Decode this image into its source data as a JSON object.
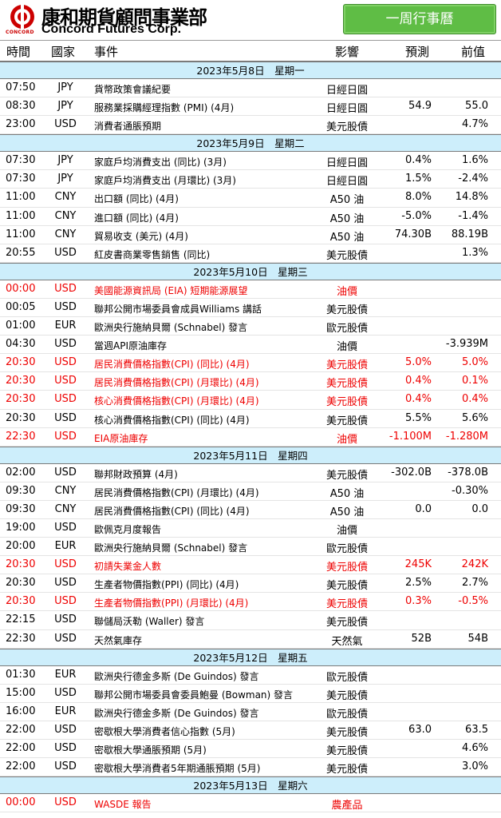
{
  "header": {
    "logo_cn": "康和期貨顧問事業部",
    "logo_en": "Concord Futures Corp.",
    "logo_small": "CONCORD",
    "badge": "一周行事曆",
    "brand_color": "#cc0000",
    "badge_color": "#5fbd45"
  },
  "columns": {
    "time": "時間",
    "country": "國家",
    "event": "事件",
    "impact": "影響",
    "forecast": "預測",
    "previous": "前值"
  },
  "highlight_color": "#ee0000",
  "days": [
    {
      "date": "2023年5月8日　星期一",
      "events": [
        {
          "time": "07:50",
          "country": "JPY",
          "event": "貨幣政策會議紀要",
          "impact": "日經日圓",
          "forecast": "",
          "previous": "",
          "red": false
        },
        {
          "time": "08:30",
          "country": "JPY",
          "event": "服務業採購經理指數 (PMI) (4月)",
          "impact": "日經日圓",
          "forecast": "54.9",
          "previous": "55.0",
          "red": false
        },
        {
          "time": "23:00",
          "country": "USD",
          "event": "消費者通脹預期",
          "impact": "美元股債",
          "forecast": "",
          "previous": "4.7%",
          "red": false
        }
      ]
    },
    {
      "date": "2023年5月9日　星期二",
      "events": [
        {
          "time": "07:30",
          "country": "JPY",
          "event": "家庭戶均消費支出 (同比) (3月)",
          "impact": "日經日圓",
          "forecast": "0.4%",
          "previous": "1.6%",
          "red": false
        },
        {
          "time": "07:30",
          "country": "JPY",
          "event": "家庭戶均消費支出 (月環比) (3月)",
          "impact": "日經日圓",
          "forecast": "1.5%",
          "previous": "-2.4%",
          "red": false
        },
        {
          "time": "11:00",
          "country": "CNY",
          "event": "出口額 (同比) (4月)",
          "impact": "A50 油",
          "forecast": "8.0%",
          "previous": "14.8%",
          "red": false
        },
        {
          "time": "11:00",
          "country": "CNY",
          "event": "進口額 (同比) (4月)",
          "impact": "A50 油",
          "forecast": "-5.0%",
          "previous": "-1.4%",
          "red": false
        },
        {
          "time": "11:00",
          "country": "CNY",
          "event": "貿易收支 (美元) (4月)",
          "impact": "A50 油",
          "forecast": "74.30B",
          "previous": "88.19B",
          "red": false
        },
        {
          "time": "20:55",
          "country": "USD",
          "event": "紅皮書商業零售銷售 (同比)",
          "impact": "美元股債",
          "forecast": "",
          "previous": "1.3%",
          "red": false
        }
      ]
    },
    {
      "date": "2023年5月10日　星期三",
      "events": [
        {
          "time": "00:00",
          "country": "USD",
          "event": "美國能源資訊局 (EIA) 短期能源展望",
          "impact": "油價",
          "forecast": "",
          "previous": "",
          "red": true
        },
        {
          "time": "00:05",
          "country": "USD",
          "event": "聯邦公開市場委員會成員Williams 講話",
          "impact": "美元股債",
          "forecast": "",
          "previous": "",
          "red": false
        },
        {
          "time": "01:00",
          "country": "EUR",
          "event": "歐洲央行施納貝爾 (Schnabel) 發言",
          "impact": "歐元股債",
          "forecast": "",
          "previous": "",
          "red": false
        },
        {
          "time": "04:30",
          "country": "USD",
          "event": "當週API原油庫存",
          "impact": "油價",
          "forecast": "",
          "previous": "-3.939M",
          "red": false
        },
        {
          "time": "20:30",
          "country": "USD",
          "event": "居民消費價格指數(CPI) (同比) (4月)",
          "impact": "美元股債",
          "forecast": "5.0%",
          "previous": "5.0%",
          "red": true
        },
        {
          "time": "20:30",
          "country": "USD",
          "event": "居民消費價格指數(CPI) (月環比) (4月)",
          "impact": "美元股債",
          "forecast": "0.4%",
          "previous": "0.1%",
          "red": true
        },
        {
          "time": "20:30",
          "country": "USD",
          "event": "核心消費價格指數(CPI) (月環比) (4月)",
          "impact": "美元股債",
          "forecast": "0.4%",
          "previous": "0.4%",
          "red": true
        },
        {
          "time": "20:30",
          "country": "USD",
          "event": "核心消費價格指數(CPI) (同比) (4月)",
          "impact": "美元股債",
          "forecast": "5.5%",
          "previous": "5.6%",
          "red": false
        },
        {
          "time": "22:30",
          "country": "USD",
          "event": "EIA原油庫存",
          "impact": "油價",
          "forecast": "-1.100M",
          "previous": "-1.280M",
          "red": true
        }
      ]
    },
    {
      "date": "2023年5月11日　星期四",
      "events": [
        {
          "time": "02:00",
          "country": "USD",
          "event": "聯邦財政預算 (4月)",
          "impact": "美元股債",
          "forecast": "-302.0B",
          "previous": "-378.0B",
          "red": false
        },
        {
          "time": "09:30",
          "country": "CNY",
          "event": "居民消費價格指數(CPI) (月環比) (4月)",
          "impact": "A50 油",
          "forecast": "",
          "previous": "-0.30%",
          "red": false
        },
        {
          "time": "09:30",
          "country": "CNY",
          "event": "居民消費價格指數(CPI) (同比) (4月)",
          "impact": "A50 油",
          "forecast": "0.0",
          "previous": "0.0",
          "red": false
        },
        {
          "time": "19:00",
          "country": "USD",
          "event": "歐佩克月度報告",
          "impact": "油價",
          "forecast": "",
          "previous": "",
          "red": false
        },
        {
          "time": "20:00",
          "country": "EUR",
          "event": "歐洲央行施納貝爾 (Schnabel) 發言",
          "impact": "歐元股債",
          "forecast": "",
          "previous": "",
          "red": false
        },
        {
          "time": "20:30",
          "country": "USD",
          "event": "初請失業金人數",
          "impact": "美元股債",
          "forecast": "245K",
          "previous": "242K",
          "red": true
        },
        {
          "time": "20:30",
          "country": "USD",
          "event": "生產者物價指數(PPI) (同比) (4月)",
          "impact": "美元股債",
          "forecast": "2.5%",
          "previous": "2.7%",
          "red": false
        },
        {
          "time": "20:30",
          "country": "USD",
          "event": "生產者物價指數(PPI) (月環比) (4月)",
          "impact": "美元股債",
          "forecast": "0.3%",
          "previous": "-0.5%",
          "red": true
        },
        {
          "time": "22:15",
          "country": "USD",
          "event": "聯儲局沃勒 (Waller) 發言",
          "impact": "美元股債",
          "forecast": "",
          "previous": "",
          "red": false
        },
        {
          "time": "22:30",
          "country": "USD",
          "event": "天然氣庫存",
          "impact": "天然氣",
          "forecast": "52B",
          "previous": "54B",
          "red": false
        }
      ]
    },
    {
      "date": "2023年5月12日　星期五",
      "events": [
        {
          "time": "01:30",
          "country": "EUR",
          "event": "歐洲央行德金多斯 (De Guindos) 發言",
          "impact": "歐元股債",
          "forecast": "",
          "previous": "",
          "red": false
        },
        {
          "time": "15:00",
          "country": "USD",
          "event": "聯邦公開市場委員會委員鮑曼 (Bowman) 發言",
          "impact": "美元股債",
          "forecast": "",
          "previous": "",
          "red": false
        },
        {
          "time": "16:00",
          "country": "EUR",
          "event": "歐洲央行德金多斯 (De Guindos) 發言",
          "impact": "歐元股債",
          "forecast": "",
          "previous": "",
          "red": false
        },
        {
          "time": "22:00",
          "country": "USD",
          "event": "密歇根大學消費者信心指數 (5月)",
          "impact": "美元股債",
          "forecast": "63.0",
          "previous": "63.5",
          "red": false
        },
        {
          "time": "22:00",
          "country": "USD",
          "event": "密歇根大學通脹預期 (5月)",
          "impact": "美元股債",
          "forecast": "",
          "previous": "4.6%",
          "red": false
        },
        {
          "time": "22:00",
          "country": "USD",
          "event": "密歇根大學消費者5年期通脹預期 (5月)",
          "impact": "美元股債",
          "forecast": "",
          "previous": "3.0%",
          "red": false
        }
      ]
    },
    {
      "date": "2023年5月13日　星期六",
      "events": [
        {
          "time": "00:00",
          "country": "USD",
          "event": "WASDE 報告",
          "impact": "農產品",
          "forecast": "",
          "previous": "",
          "red": true
        }
      ]
    }
  ]
}
